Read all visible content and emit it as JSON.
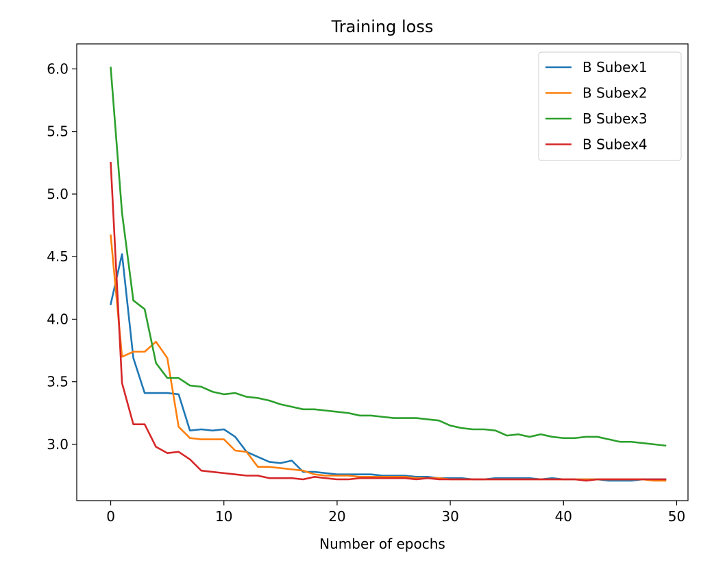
{
  "chart_data": {
    "type": "line",
    "title": "Training loss",
    "xlabel": "Number of epochs",
    "ylabel": "",
    "xlim": [
      -3,
      51
    ],
    "ylim": [
      2.55,
      6.2
    ],
    "xticks": [
      0,
      10,
      20,
      30,
      40,
      50
    ],
    "yticks": [
      3.0,
      3.5,
      4.0,
      4.5,
      5.0,
      5.5,
      6.0
    ],
    "grid": false,
    "legend_position": "top-right",
    "x": [
      0,
      1,
      2,
      3,
      4,
      5,
      6,
      7,
      8,
      9,
      10,
      11,
      12,
      13,
      14,
      15,
      16,
      17,
      18,
      19,
      20,
      21,
      22,
      23,
      24,
      25,
      26,
      27,
      28,
      29,
      30,
      31,
      32,
      33,
      34,
      35,
      36,
      37,
      38,
      39,
      40,
      41,
      42,
      43,
      44,
      45,
      46,
      47,
      48,
      49
    ],
    "series": [
      {
        "name": "B Subex1",
        "color": "#1f77b4",
        "values": [
          4.12,
          4.52,
          3.69,
          3.41,
          3.41,
          3.41,
          3.4,
          3.11,
          3.12,
          3.11,
          3.12,
          3.06,
          2.94,
          2.9,
          2.86,
          2.85,
          2.87,
          2.78,
          2.78,
          2.77,
          2.76,
          2.76,
          2.76,
          2.76,
          2.75,
          2.75,
          2.75,
          2.74,
          2.74,
          2.73,
          2.73,
          2.73,
          2.72,
          2.72,
          2.73,
          2.73,
          2.73,
          2.73,
          2.72,
          2.73,
          2.72,
          2.72,
          2.72,
          2.72,
          2.71,
          2.71,
          2.71,
          2.72,
          2.72,
          2.72
        ]
      },
      {
        "name": "B Subex2",
        "color": "#ff7f0e",
        "values": [
          4.67,
          3.7,
          3.74,
          3.74,
          3.82,
          3.69,
          3.14,
          3.05,
          3.04,
          3.04,
          3.04,
          2.95,
          2.94,
          2.82,
          2.82,
          2.81,
          2.8,
          2.79,
          2.76,
          2.75,
          2.75,
          2.75,
          2.74,
          2.74,
          2.74,
          2.74,
          2.74,
          2.73,
          2.73,
          2.73,
          2.72,
          2.72,
          2.72,
          2.72,
          2.72,
          2.72,
          2.72,
          2.72,
          2.72,
          2.72,
          2.72,
          2.72,
          2.72,
          2.72,
          2.72,
          2.72,
          2.72,
          2.72,
          2.71,
          2.71
        ]
      },
      {
        "name": "B Subex3",
        "color": "#2ca02c",
        "values": [
          6.01,
          4.85,
          4.15,
          4.08,
          3.65,
          3.53,
          3.53,
          3.47,
          3.46,
          3.42,
          3.4,
          3.41,
          3.38,
          3.37,
          3.35,
          3.32,
          3.3,
          3.28,
          3.28,
          3.27,
          3.26,
          3.25,
          3.23,
          3.23,
          3.22,
          3.21,
          3.21,
          3.21,
          3.2,
          3.19,
          3.15,
          3.13,
          3.12,
          3.12,
          3.11,
          3.07,
          3.08,
          3.06,
          3.08,
          3.06,
          3.05,
          3.05,
          3.06,
          3.06,
          3.04,
          3.02,
          3.02,
          3.01,
          3.0,
          2.99
        ]
      },
      {
        "name": "B Subex4",
        "color": "#d62728",
        "values": [
          5.25,
          3.49,
          3.16,
          3.16,
          2.98,
          2.93,
          2.94,
          2.88,
          2.79,
          2.78,
          2.77,
          2.76,
          2.75,
          2.75,
          2.73,
          2.73,
          2.73,
          2.72,
          2.74,
          2.73,
          2.72,
          2.72,
          2.73,
          2.73,
          2.73,
          2.73,
          2.73,
          2.72,
          2.73,
          2.72,
          2.72,
          2.72,
          2.72,
          2.72,
          2.72,
          2.72,
          2.72,
          2.72,
          2.72,
          2.72,
          2.72,
          2.72,
          2.71,
          2.72,
          2.72,
          2.72,
          2.72,
          2.72,
          2.72,
          2.72
        ]
      }
    ]
  }
}
